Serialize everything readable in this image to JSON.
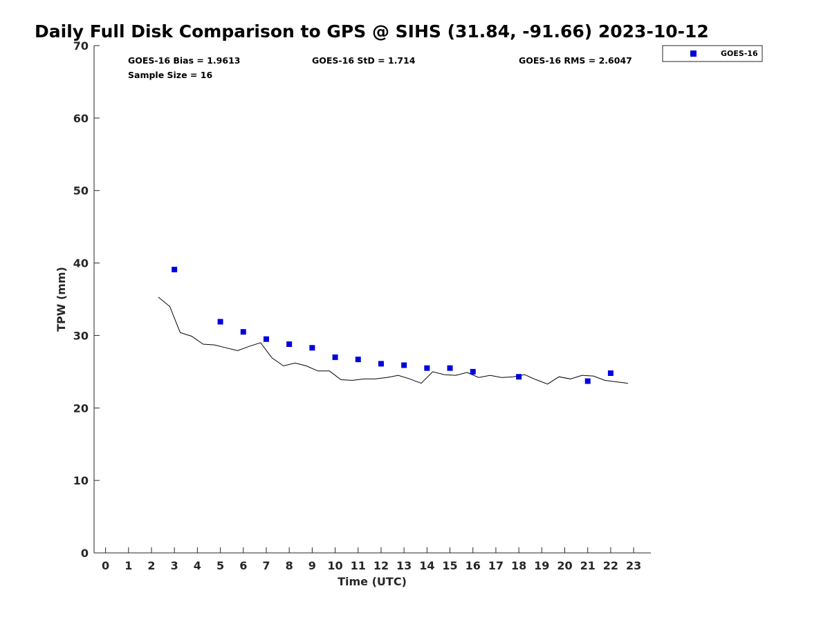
{
  "chart_data": {
    "type": "scatter",
    "title": "Daily Full Disk Comparison to GPS @ SIHS (31.84, -91.66) 2023-10-12",
    "xlabel": "Time (UTC)",
    "ylabel": "TPW (mm)",
    "xlim": [
      -0.5,
      23.75
    ],
    "ylim": [
      0,
      70
    ],
    "x_ticks": [
      0,
      1,
      2,
      3,
      4,
      5,
      6,
      7,
      8,
      9,
      10,
      11,
      12,
      13,
      14,
      15,
      16,
      17,
      18,
      19,
      20,
      21,
      22,
      23
    ],
    "x_tick_labels": [
      "0",
      "1",
      "2",
      "3",
      "4",
      "5",
      "6",
      "7",
      "8",
      "9",
      "10",
      "11",
      "12",
      "13",
      "14",
      "15",
      "16",
      "17",
      "18",
      "19",
      "20",
      "21",
      "22",
      "23"
    ],
    "y_ticks": [
      0,
      10,
      20,
      30,
      40,
      50,
      60,
      70
    ],
    "y_tick_labels": [
      "0",
      "10",
      "20",
      "30",
      "40",
      "50",
      "60",
      "70"
    ],
    "grid": false,
    "legend_position": "top-right, outside plot",
    "stats": {
      "bias": "GOES-16 Bias = 1.9613",
      "std": "GOES-16 StD = 1.714",
      "rms": "GOES-16 RMS = 2.6047",
      "sample_size": "Sample Size = 16"
    },
    "series": [
      {
        "name": "GOES-16",
        "kind": "markers",
        "marker": "square",
        "color": "#0000dd",
        "x": [
          3,
          5,
          6,
          7,
          8,
          9,
          10,
          11,
          12,
          13,
          14,
          15,
          16,
          18,
          21,
          22
        ],
        "y": [
          39.1,
          31.9,
          30.5,
          29.5,
          28.8,
          28.3,
          27.0,
          26.7,
          26.1,
          25.9,
          25.5,
          25.5,
          25.0,
          24.3,
          23.7,
          24.8
        ]
      },
      {
        "kind": "line",
        "color": "#000000",
        "x": [
          2.3,
          2.8,
          3.25,
          3.75,
          4.25,
          4.75,
          5.25,
          5.75,
          6.25,
          6.75,
          7.25,
          7.75,
          8.25,
          8.75,
          9.25,
          9.75,
          10.25,
          10.75,
          11.25,
          11.75,
          12.25,
          12.75,
          13.25,
          13.75,
          14.25,
          14.75,
          15.25,
          15.75,
          16.25,
          16.75,
          17.25,
          17.75,
          18.25,
          18.75,
          19.25,
          19.75,
          20.25,
          20.75,
          21.25,
          21.75,
          22.25,
          22.75
        ],
        "y": [
          35.3,
          34.0,
          30.4,
          29.9,
          28.8,
          28.7,
          28.3,
          27.9,
          28.5,
          29.0,
          26.9,
          25.8,
          26.2,
          25.8,
          25.1,
          25.1,
          23.9,
          23.8,
          24.0,
          24.0,
          24.2,
          24.5,
          24.0,
          23.4,
          25.0,
          24.6,
          24.5,
          24.9,
          24.2,
          24.5,
          24.2,
          24.3,
          24.6,
          23.9,
          23.3,
          24.3,
          24.0,
          24.5,
          24.4,
          23.8,
          23.6,
          23.4
        ]
      }
    ]
  }
}
